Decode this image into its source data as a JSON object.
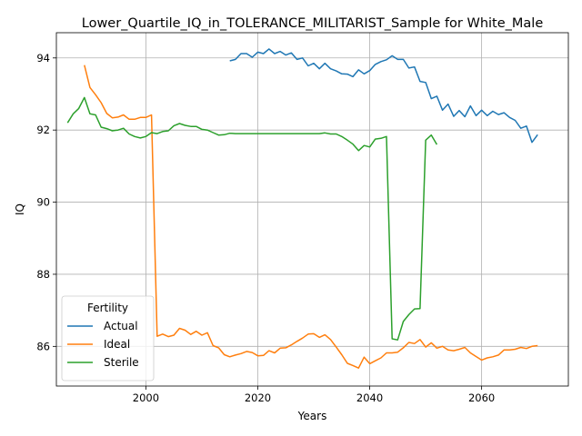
{
  "chart_data": {
    "type": "line",
    "title": "Lower_Quartile_IQ_in_TOLERANCE_MILITARIST_Sample for White_Male",
    "xlabel": "Years",
    "ylabel": "IQ",
    "xlim": [
      1984,
      2075.5
    ],
    "ylim": [
      84.9,
      94.7
    ],
    "xticks": [
      2000,
      2020,
      2040,
      2060
    ],
    "yticks": [
      86,
      88,
      90,
      92,
      94
    ],
    "grid": true,
    "legend": {
      "title": "Fertility",
      "placement": "lower-left"
    },
    "series": [
      {
        "name": "Actual",
        "color": "#1f77b4",
        "x": [
          2015,
          2016,
          2017,
          2018,
          2019,
          2020,
          2021,
          2022,
          2023,
          2024,
          2025,
          2026,
          2027,
          2028,
          2029,
          2030,
          2031,
          2032,
          2033,
          2034,
          2035,
          2036,
          2037,
          2038,
          2039,
          2040,
          2041,
          2042,
          2043,
          2044,
          2045,
          2046,
          2047,
          2048,
          2049,
          2050,
          2051,
          2052,
          2053,
          2054,
          2055,
          2056,
          2057,
          2058,
          2059,
          2060,
          2061,
          2062,
          2063,
          2064,
          2065,
          2066,
          2067,
          2068,
          2069,
          2070
        ],
        "y": [
          93.92,
          93.96,
          94.12,
          94.12,
          94.02,
          94.16,
          94.12,
          94.25,
          94.12,
          94.18,
          94.08,
          94.14,
          93.96,
          94.0,
          93.78,
          93.85,
          93.7,
          93.85,
          93.7,
          93.64,
          93.56,
          93.55,
          93.48,
          93.67,
          93.56,
          93.65,
          93.82,
          93.9,
          93.95,
          94.06,
          93.96,
          93.96,
          93.72,
          93.75,
          93.35,
          93.32,
          92.87,
          92.94,
          92.55,
          92.72,
          92.38,
          92.54,
          92.37,
          92.67,
          92.4,
          92.55,
          92.4,
          92.52,
          92.43,
          92.48,
          92.35,
          92.27,
          92.05,
          92.11,
          91.66,
          91.87
        ]
      },
      {
        "name": "Ideal",
        "color": "#ff7f0e",
        "x": [
          1989,
          1990,
          1991,
          1992,
          1993,
          1994,
          1995,
          1996,
          1997,
          1998,
          1999,
          2000,
          2001,
          2002,
          2003,
          2004,
          2005,
          2006,
          2007,
          2008,
          2009,
          2010,
          2011,
          2012,
          2013,
          2014,
          2015,
          2016,
          2017,
          2018,
          2019,
          2020,
          2021,
          2022,
          2023,
          2024,
          2025,
          2026,
          2027,
          2028,
          2029,
          2030,
          2031,
          2032,
          2033,
          2034,
          2035,
          2036,
          2037,
          2038,
          2039,
          2040,
          2041,
          2042,
          2043,
          2044,
          2045,
          2046,
          2047,
          2048,
          2049,
          2050,
          2051,
          2052,
          2053,
          2054,
          2055,
          2056,
          2057,
          2058,
          2059,
          2060,
          2061,
          2062,
          2063,
          2064,
          2065,
          2066,
          2067,
          2068,
          2069,
          2070
        ],
        "y": [
          93.8,
          93.18,
          92.98,
          92.76,
          92.46,
          92.34,
          92.36,
          92.42,
          92.3,
          92.3,
          92.35,
          92.35,
          92.42,
          86.28,
          86.34,
          86.27,
          86.31,
          86.5,
          86.45,
          86.33,
          86.42,
          86.31,
          86.38,
          86.02,
          85.96,
          85.77,
          85.71,
          85.76,
          85.8,
          85.86,
          85.83,
          85.74,
          85.75,
          85.88,
          85.82,
          85.95,
          85.96,
          86.04,
          86.14,
          86.23,
          86.34,
          86.35,
          86.25,
          86.32,
          86.19,
          85.98,
          85.77,
          85.53,
          85.47,
          85.4,
          85.7,
          85.52,
          85.6,
          85.68,
          85.82,
          85.82,
          85.84,
          85.96,
          86.11,
          86.08,
          86.19,
          85.98,
          86.1,
          85.95,
          86.0,
          85.9,
          85.88,
          85.92,
          85.97,
          85.82,
          85.72,
          85.62,
          85.68,
          85.71,
          85.76,
          85.9,
          85.9,
          85.92,
          85.97,
          85.94,
          86.0,
          86.02
        ]
      },
      {
        "name": "Sterile",
        "color": "#2ca02c",
        "x": [
          1986,
          1987,
          1988,
          1989,
          1990,
          1991,
          1992,
          1993,
          1994,
          1995,
          1996,
          1997,
          1998,
          1999,
          2000,
          2001,
          2002,
          2003,
          2004,
          2005,
          2006,
          2007,
          2008,
          2009,
          2010,
          2011,
          2012,
          2013,
          2014,
          2015,
          2016,
          2017,
          2018,
          2019,
          2020,
          2021,
          2022,
          2023,
          2024,
          2025,
          2026,
          2027,
          2028,
          2029,
          2030,
          2031,
          2032,
          2033,
          2034,
          2035,
          2036,
          2037,
          2038,
          2039,
          2040,
          2041,
          2042,
          2043,
          2044,
          2045,
          2046,
          2047,
          2048,
          2049,
          2050,
          2051,
          2052
        ],
        "y": [
          92.2,
          92.45,
          92.6,
          92.9,
          92.45,
          92.42,
          92.08,
          92.04,
          91.98,
          92.0,
          92.05,
          91.89,
          91.82,
          91.78,
          91.82,
          91.93,
          91.9,
          91.96,
          91.98,
          92.12,
          92.18,
          92.13,
          92.1,
          92.1,
          92.02,
          92.0,
          91.93,
          91.86,
          91.87,
          91.91,
          91.9,
          91.9,
          91.9,
          91.9,
          91.9,
          91.9,
          91.9,
          91.9,
          91.9,
          91.9,
          91.9,
          91.9,
          91.9,
          91.9,
          91.9,
          91.9,
          91.92,
          91.89,
          91.89,
          91.82,
          91.72,
          91.61,
          91.43,
          91.57,
          91.53,
          91.75,
          91.77,
          91.82,
          86.21,
          86.18,
          86.69,
          86.88,
          87.04,
          87.05,
          91.72,
          91.86,
          91.6
        ]
      }
    ]
  }
}
